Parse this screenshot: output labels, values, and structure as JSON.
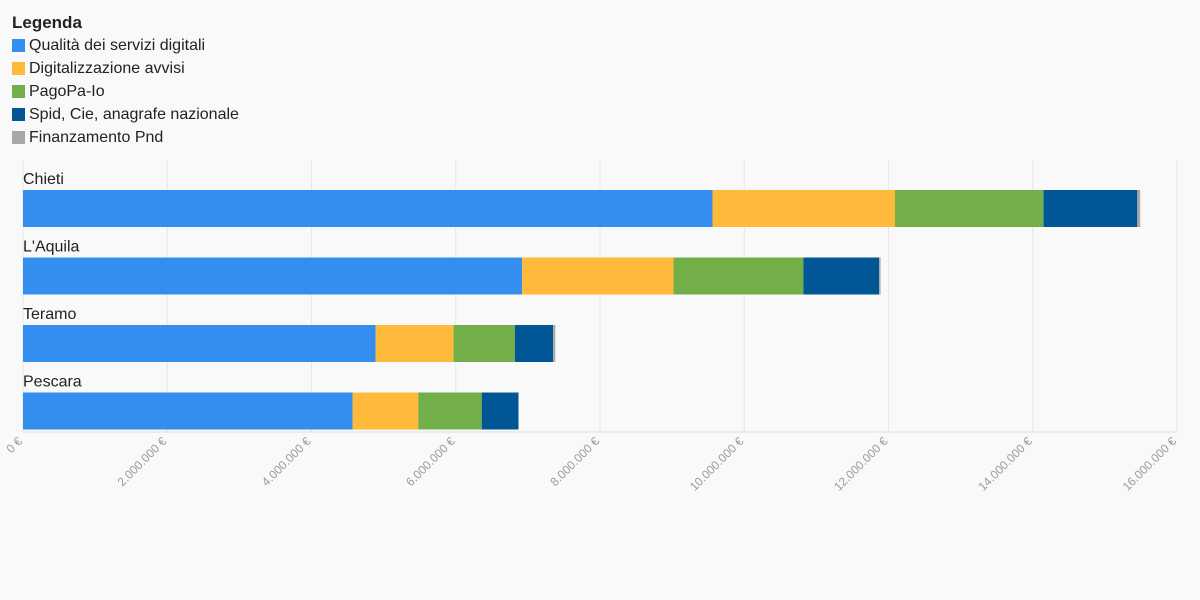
{
  "chart_data": {
    "type": "bar",
    "orientation": "horizontal",
    "stacked": true,
    "legend_title": "Legenda",
    "legend_position": "top-left",
    "categories": [
      "Chieti",
      "L'Aquila",
      "Teramo",
      "Pescara"
    ],
    "series": [
      {
        "name": "Qualità dei servizi digitali",
        "color": "#338ef0",
        "values": [
          9560000,
          6920000,
          4890000,
          4570000
        ]
      },
      {
        "name": "Digitalizzazione avvisi",
        "color": "#ffba3b",
        "values": [
          2530000,
          2100000,
          1080000,
          910000
        ]
      },
      {
        "name": "PagoPa-Io",
        "color": "#73af48",
        "values": [
          2060000,
          1800000,
          850000,
          880000
        ]
      },
      {
        "name": "Spid, Cie, anagrafe nazionale",
        "color": "#015796",
        "values": [
          1300000,
          1050000,
          530000,
          510000
        ]
      },
      {
        "name": "Finanzamento Pnd",
        "color": "#a8a8a8",
        "values": [
          40000,
          20000,
          30000,
          0
        ]
      }
    ],
    "xlim": [
      0,
      16000000
    ],
    "x_ticks": [
      {
        "value": 0,
        "label": "0 €"
      },
      {
        "value": 2000000,
        "label": "2.000.000 €"
      },
      {
        "value": 4000000,
        "label": "4.000.000 €"
      },
      {
        "value": 6000000,
        "label": "6.000.000 €"
      },
      {
        "value": 8000000,
        "label": "8.000.000 €"
      },
      {
        "value": 10000000,
        "label": "10.000.000 €"
      },
      {
        "value": 12000000,
        "label": "12.000.000 €"
      },
      {
        "value": 14000000,
        "label": "14.000.000 €"
      },
      {
        "value": 16000000,
        "label": "16.000.000 €"
      }
    ],
    "grid": true,
    "xlabel": "",
    "ylabel": ""
  }
}
